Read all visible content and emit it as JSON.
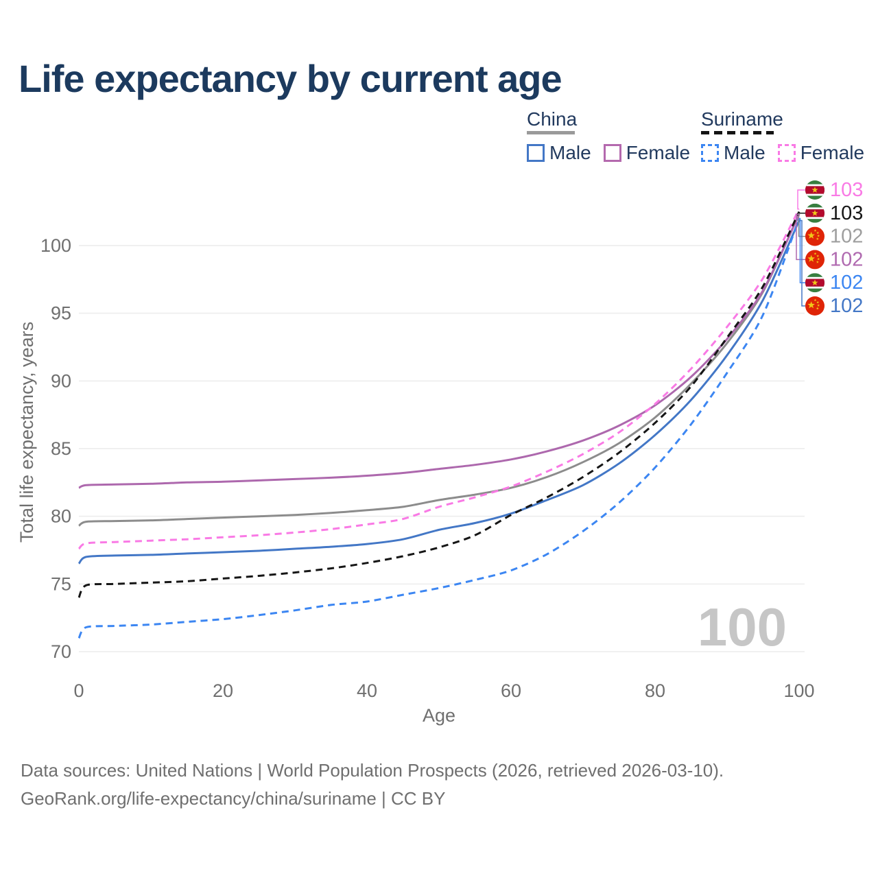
{
  "title": "Life expectancy by current age",
  "legend": {
    "china": {
      "label": "China",
      "male": "Male",
      "female": "Female"
    },
    "suriname": {
      "label": "Suriname",
      "male": "Male",
      "female": "Female"
    }
  },
  "watermark": "100",
  "footer": {
    "line1": "Data sources: United Nations | World Population Prospects (2026, retrieved 2026-03-10).",
    "line2": "GeoRank.org/life-expectancy/china/suriname | CC BY"
  },
  "colors": {
    "title": "#1c3a5e",
    "legend_text": "#223a5e",
    "axis_text": "#6f6f6f",
    "grid": "#ececec",
    "watermark": "#c6c6c6",
    "china_male": "#4377c6",
    "china_female": "#ad68ad",
    "china_total": "#8c8c8c",
    "suriname_male": "#3c86f2",
    "suriname_female": "#f97ae5",
    "suriname_total": "#161616",
    "china_total_label": "#9e9e9e",
    "china_female_label": "#b06ab0",
    "flag_suriname_green": "#377e3f",
    "flag_suriname_red": "#b40a2d",
    "flag_china_red": "#df2407",
    "flag_star_yellow": "#f0c618"
  },
  "chart_data": {
    "type": "line",
    "title": "Life expectancy by current age",
    "xlabel": "Age",
    "ylabel": "Total life expectancy, years",
    "xlim": [
      0,
      100
    ],
    "ylim": [
      70,
      103.5
    ],
    "xticks": [
      0,
      20,
      40,
      60,
      80,
      100
    ],
    "yticks": [
      70,
      75,
      80,
      85,
      90,
      95,
      100
    ],
    "grid": "horizontal-only",
    "legend_position": "top-right",
    "x": [
      0,
      1,
      5,
      10,
      15,
      20,
      25,
      30,
      35,
      40,
      45,
      50,
      55,
      60,
      65,
      70,
      75,
      80,
      85,
      90,
      95,
      100
    ],
    "series": [
      {
        "name": "China (both sexes)",
        "country": "china",
        "sex": "both",
        "line": "solid",
        "color_key": "china_total",
        "values": [
          79.3,
          79.6,
          79.65,
          79.7,
          79.8,
          79.9,
          80.0,
          80.1,
          80.25,
          80.45,
          80.7,
          81.2,
          81.6,
          82.1,
          82.9,
          84.0,
          85.4,
          87.3,
          89.8,
          92.8,
          96.6,
          102.35
        ]
      },
      {
        "name": "China Female",
        "country": "china",
        "sex": "female",
        "line": "solid",
        "color_key": "china_female",
        "values": [
          82.1,
          82.3,
          82.35,
          82.4,
          82.5,
          82.55,
          82.65,
          82.75,
          82.85,
          83.0,
          83.2,
          83.5,
          83.8,
          84.2,
          84.8,
          85.6,
          86.7,
          88.2,
          90.3,
          93.1,
          96.7,
          102.3
        ]
      },
      {
        "name": "China Male",
        "country": "china",
        "sex": "male",
        "line": "solid",
        "color_key": "china_male",
        "values": [
          76.5,
          77.0,
          77.1,
          77.15,
          77.25,
          77.35,
          77.45,
          77.6,
          77.75,
          77.95,
          78.3,
          79.0,
          79.5,
          80.2,
          81.2,
          82.3,
          83.9,
          86.0,
          88.6,
          91.9,
          96.0,
          101.85
        ]
      },
      {
        "name": "Suriname Female",
        "country": "suriname",
        "sex": "female",
        "line": "dashed",
        "color_key": "suriname_female",
        "values": [
          77.6,
          78.0,
          78.1,
          78.2,
          78.3,
          78.45,
          78.6,
          78.8,
          79.05,
          79.4,
          79.8,
          80.7,
          81.4,
          82.2,
          83.3,
          84.6,
          86.2,
          88.3,
          90.9,
          94.0,
          97.6,
          102.7
        ]
      },
      {
        "name": "Suriname (both sexes)",
        "country": "suriname",
        "sex": "both",
        "line": "dashed",
        "color_key": "suriname_total",
        "values": [
          74.0,
          74.9,
          75.0,
          75.1,
          75.2,
          75.4,
          75.6,
          75.85,
          76.15,
          76.55,
          77.05,
          77.7,
          78.6,
          80.1,
          81.4,
          82.9,
          84.7,
          86.9,
          89.6,
          93.2,
          97.0,
          102.5
        ]
      },
      {
        "name": "Suriname Male",
        "country": "suriname",
        "sex": "male",
        "line": "dashed",
        "color_key": "suriname_male",
        "values": [
          71.0,
          71.8,
          71.9,
          72.0,
          72.2,
          72.4,
          72.7,
          73.05,
          73.45,
          73.7,
          74.2,
          74.7,
          75.3,
          76.0,
          77.2,
          78.9,
          81.0,
          83.6,
          86.8,
          90.6,
          94.9,
          102.0
        ]
      }
    ],
    "end_labels": [
      {
        "row": 0,
        "flag": "suriname",
        "series": "Suriname Female",
        "text": "103",
        "color_key": "suriname_female"
      },
      {
        "row": 1,
        "flag": "suriname",
        "series": "Suriname (both sexes)",
        "text": "103",
        "color_key": "suriname_total"
      },
      {
        "row": 2,
        "flag": "china",
        "series": "China (both sexes)",
        "text": "102",
        "color_key": "china_total_label"
      },
      {
        "row": 3,
        "flag": "china",
        "series": "China Female",
        "text": "102",
        "color_key": "china_female_label"
      },
      {
        "row": 4,
        "flag": "suriname",
        "series": "Suriname Male",
        "text": "102",
        "color_key": "suriname_male"
      },
      {
        "row": 5,
        "flag": "china",
        "series": "China Male",
        "text": "102",
        "color_key": "china_male"
      }
    ]
  }
}
